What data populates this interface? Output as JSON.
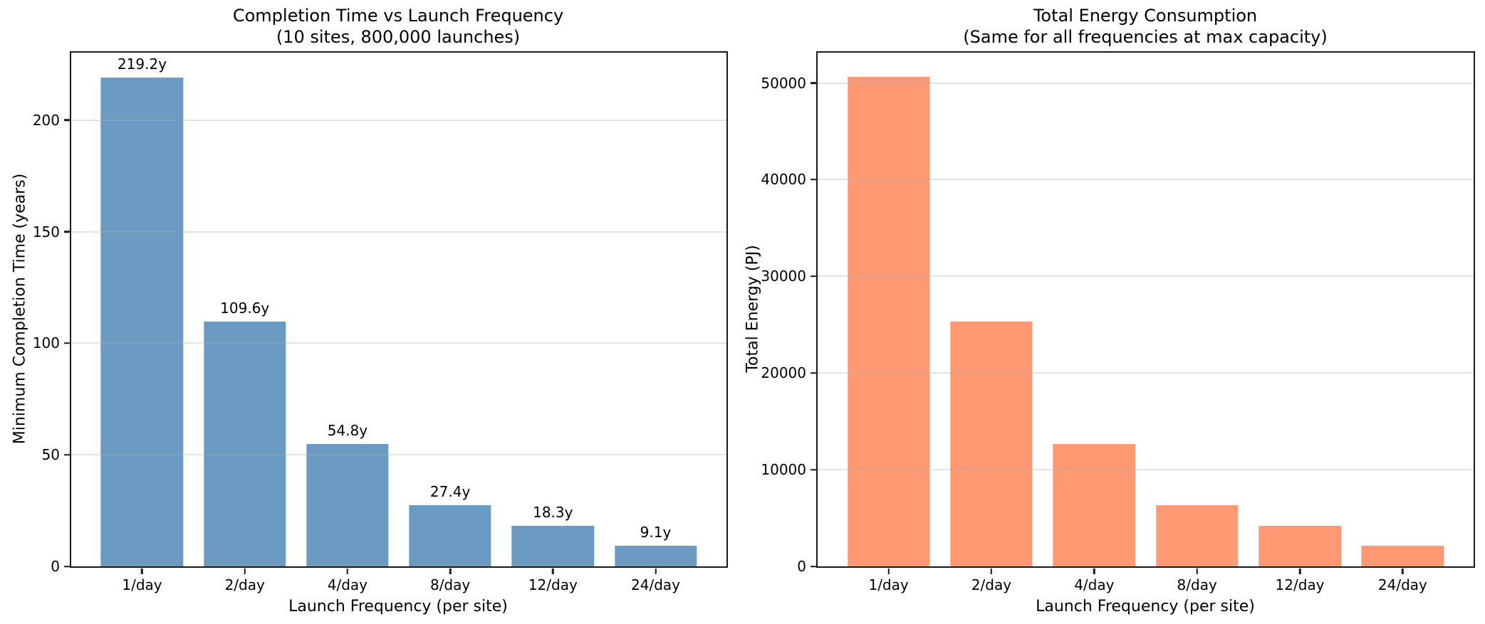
{
  "figure": {
    "background_color": "#ffffff",
    "spine_color": "#1a1a1a",
    "grid_color": "#e7e7e7",
    "text_color": "#000000"
  },
  "chart_data": [
    {
      "type": "bar",
      "title": "Completion Time vs Launch Frequency",
      "subtitle": "(10 sites, 800,000 launches)",
      "xlabel": "Launch Frequency (per site)",
      "ylabel": "Minimum Completion Time (years)",
      "categories": [
        "1/day",
        "2/day",
        "4/day",
        "8/day",
        "12/day",
        "24/day"
      ],
      "values": [
        219.2,
        109.6,
        54.8,
        27.4,
        18.3,
        9.1
      ],
      "bar_labels": [
        "219.2y",
        "109.6y",
        "54.8y",
        "27.4y",
        "18.3y",
        "9.1y"
      ],
      "yticks": [
        0,
        50,
        100,
        150,
        200
      ],
      "ytick_labels": [
        "0",
        "50",
        "100",
        "150",
        "200"
      ],
      "ylim": [
        0,
        230.2
      ],
      "bar_color": "#6b9bc3",
      "grid": true,
      "legend": null
    },
    {
      "type": "bar",
      "title": "Total Energy Consumption",
      "subtitle": "(Same for all frequencies at max capacity)",
      "xlabel": "Launch Frequency (per site)",
      "ylabel": "Total Energy (PJ)",
      "categories": [
        "1/day",
        "2/day",
        "4/day",
        "8/day",
        "12/day",
        "24/day"
      ],
      "values": [
        50600,
        25300,
        12650,
        6325,
        4217,
        2108
      ],
      "bar_labels": null,
      "yticks": [
        0,
        10000,
        20000,
        30000,
        40000,
        50000
      ],
      "ytick_labels": [
        "0",
        "10000",
        "20000",
        "30000",
        "40000",
        "50000"
      ],
      "ylim": [
        0,
        53130
      ],
      "bar_color": "#ff9973",
      "grid": true,
      "legend": null
    }
  ]
}
